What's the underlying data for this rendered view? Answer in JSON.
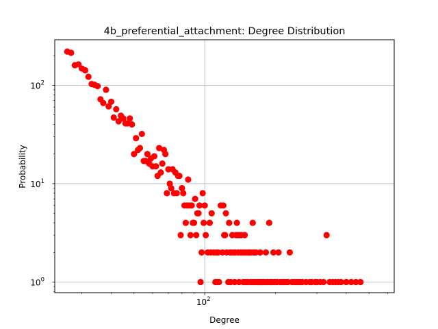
{
  "chart_data": {
    "type": "scatter",
    "title": "4b_preferential_attachment: Degree Distribution",
    "xlabel": "Degree",
    "ylabel": "Probability",
    "xscale": "log",
    "yscale": "log",
    "xlim": [
      23,
      640
    ],
    "ylim": [
      0.78,
      290
    ],
    "grid": true,
    "marker_color": "#ff0000",
    "x_ticks": [
      {
        "value": 100,
        "base": "10",
        "exp": "2"
      }
    ],
    "y_ticks": [
      {
        "value": 1,
        "base": "10",
        "exp": "0"
      },
      {
        "value": 10,
        "base": "10",
        "exp": "1"
      },
      {
        "value": 100,
        "base": "10",
        "exp": "2"
      }
    ],
    "points": [
      [
        26,
        220
      ],
      [
        27,
        214
      ],
      [
        28,
        160
      ],
      [
        29,
        163
      ],
      [
        30,
        148
      ],
      [
        31,
        142
      ],
      [
        32,
        122
      ],
      [
        33,
        103
      ],
      [
        34,
        101
      ],
      [
        35,
        98
      ],
      [
        36,
        72
      ],
      [
        37,
        66
      ],
      [
        38,
        90
      ],
      [
        39,
        61
      ],
      [
        40,
        68
      ],
      [
        41,
        47
      ],
      [
        42,
        57
      ],
      [
        43,
        43
      ],
      [
        44,
        49
      ],
      [
        45,
        46
      ],
      [
        46,
        41
      ],
      [
        47,
        41
      ],
      [
        48,
        46
      ],
      [
        49,
        40
      ],
      [
        50,
        20
      ],
      [
        51,
        29
      ],
      [
        52,
        22
      ],
      [
        53,
        23
      ],
      [
        54,
        32
      ],
      [
        55,
        17
      ],
      [
        56,
        17
      ],
      [
        57,
        20
      ],
      [
        58,
        16
      ],
      [
        59,
        18
      ],
      [
        60,
        15
      ],
      [
        61,
        19
      ],
      [
        62,
        15
      ],
      [
        63,
        12
      ],
      [
        64,
        23
      ],
      [
        65,
        13
      ],
      [
        66,
        16
      ],
      [
        67,
        22
      ],
      [
        68,
        20
      ],
      [
        69,
        8
      ],
      [
        70,
        14
      ],
      [
        71,
        10
      ],
      [
        72,
        9
      ],
      [
        73,
        14
      ],
      [
        74,
        8
      ],
      [
        75,
        13
      ],
      [
        76,
        8
      ],
      [
        77,
        12
      ],
      [
        78,
        12
      ],
      [
        79,
        3
      ],
      [
        80,
        9
      ],
      [
        81,
        8
      ],
      [
        82,
        6
      ],
      [
        83,
        4
      ],
      [
        84,
        6
      ],
      [
        85,
        11
      ],
      [
        86,
        6
      ],
      [
        87,
        3
      ],
      [
        88,
        6
      ],
      [
        89,
        4
      ],
      [
        90,
        4
      ],
      [
        91,
        7
      ],
      [
        92,
        3
      ],
      [
        93,
        5
      ],
      [
        94,
        5
      ],
      [
        95,
        6
      ],
      [
        96,
        1
      ],
      [
        97,
        2
      ],
      [
        98,
        8
      ],
      [
        99,
        4
      ],
      [
        100,
        6
      ],
      [
        101,
        3
      ],
      [
        103,
        2
      ],
      [
        105,
        4
      ],
      [
        106,
        2
      ],
      [
        107,
        5
      ],
      [
        109,
        2
      ],
      [
        111,
        1
      ],
      [
        112,
        2
      ],
      [
        113,
        1
      ],
      [
        114,
        2
      ],
      [
        115,
        1
      ],
      [
        117,
        6
      ],
      [
        119,
        2
      ],
      [
        120,
        6
      ],
      [
        121,
        3
      ],
      [
        122,
        3
      ],
      [
        123,
        5
      ],
      [
        124,
        2
      ],
      [
        126,
        1
      ],
      [
        127,
        4
      ],
      [
        128,
        2
      ],
      [
        129,
        1
      ],
      [
        130,
        2
      ],
      [
        131,
        3
      ],
      [
        133,
        2
      ],
      [
        134,
        1
      ],
      [
        135,
        2
      ],
      [
        136,
        3
      ],
      [
        137,
        4
      ],
      [
        138,
        3
      ],
      [
        139,
        2
      ],
      [
        140,
        1
      ],
      [
        141,
        3
      ],
      [
        142,
        2
      ],
      [
        143,
        3
      ],
      [
        144,
        2
      ],
      [
        146,
        1
      ],
      [
        147,
        2
      ],
      [
        148,
        3
      ],
      [
        149,
        1
      ],
      [
        150,
        2
      ],
      [
        152,
        1
      ],
      [
        153,
        2
      ],
      [
        155,
        2
      ],
      [
        156,
        1
      ],
      [
        157,
        2
      ],
      [
        159,
        1
      ],
      [
        160,
        4
      ],
      [
        161,
        2
      ],
      [
        162,
        1
      ],
      [
        163,
        2
      ],
      [
        164,
        1
      ],
      [
        165,
        2
      ],
      [
        167,
        1
      ],
      [
        169,
        1
      ],
      [
        171,
        1
      ],
      [
        172,
        2
      ],
      [
        173,
        1
      ],
      [
        175,
        1
      ],
      [
        177,
        1
      ],
      [
        180,
        1
      ],
      [
        182,
        2
      ],
      [
        184,
        1
      ],
      [
        186,
        1
      ],
      [
        188,
        4
      ],
      [
        190,
        1
      ],
      [
        192,
        1
      ],
      [
        194,
        1
      ],
      [
        196,
        2
      ],
      [
        198,
        1
      ],
      [
        200,
        1
      ],
      [
        204,
        1
      ],
      [
        206,
        2
      ],
      [
        210,
        1
      ],
      [
        214,
        1
      ],
      [
        218,
        1
      ],
      [
        222,
        1
      ],
      [
        226,
        1
      ],
      [
        230,
        2
      ],
      [
        235,
        1
      ],
      [
        240,
        1
      ],
      [
        245,
        1
      ],
      [
        250,
        1
      ],
      [
        255,
        1
      ],
      [
        260,
        1
      ],
      [
        270,
        1
      ],
      [
        280,
        1
      ],
      [
        285,
        1
      ],
      [
        295,
        1
      ],
      [
        300,
        1
      ],
      [
        310,
        1
      ],
      [
        320,
        1
      ],
      [
        330,
        3
      ],
      [
        340,
        1
      ],
      [
        350,
        1
      ],
      [
        360,
        1
      ],
      [
        370,
        1
      ],
      [
        380,
        1
      ],
      [
        400,
        1
      ],
      [
        420,
        1
      ],
      [
        440,
        1
      ],
      [
        460,
        1
      ]
    ]
  }
}
